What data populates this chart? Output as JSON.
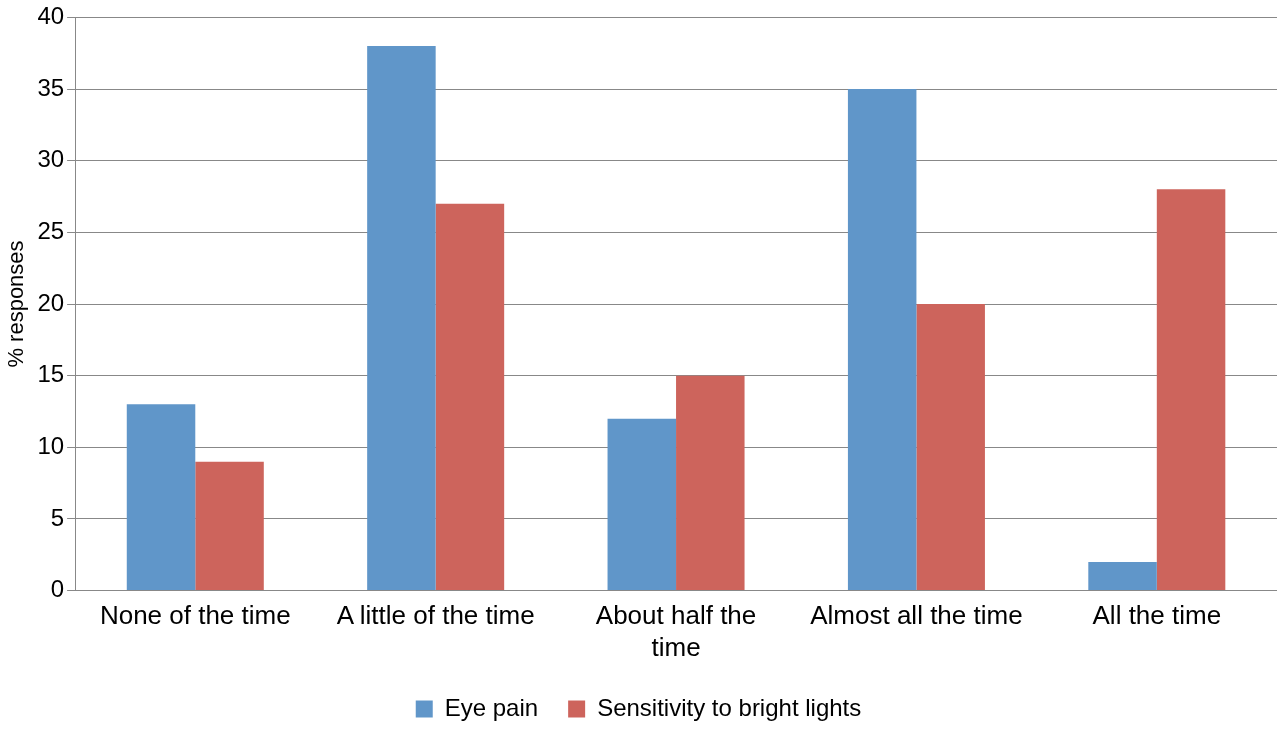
{
  "chart_data": {
    "type": "bar",
    "ylabel": "% responses",
    "categories": [
      "None of the time",
      "A little of the time",
      "About half the time",
      "Almost all the time",
      "All the time"
    ],
    "series": [
      {
        "name": "Eye pain",
        "color": "#6096c9",
        "values": [
          13,
          38,
          12,
          35,
          2
        ]
      },
      {
        "name": "Sensitivity to bright lights",
        "color": "#cd645c",
        "values": [
          9,
          27,
          15,
          20,
          28
        ]
      }
    ],
    "ylim": [
      0,
      40
    ],
    "yticks": [
      0,
      5,
      10,
      15,
      20,
      25,
      30,
      35,
      40
    ],
    "grid": "y",
    "legend": "bottom"
  }
}
